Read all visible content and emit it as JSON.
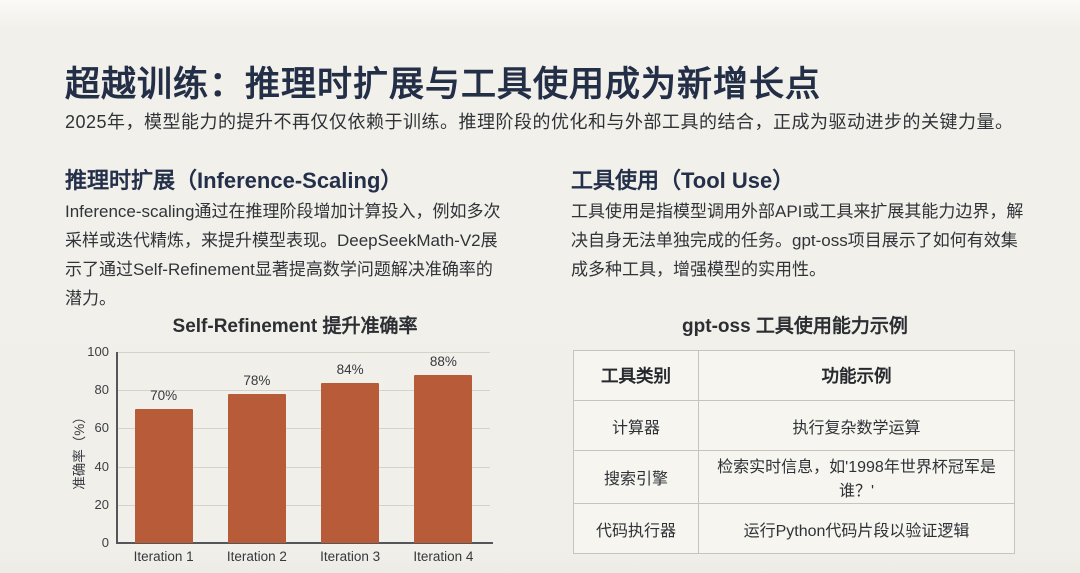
{
  "slide": {
    "title": "超越训练：推理时扩展与工具使用成为新增长点",
    "subtitle": "2025年，模型能力的提升不再仅仅依赖于训练。推理阶段的优化和与外部工具的结合，正成为驱动进步的关键力量。"
  },
  "left_section": {
    "heading": "推理时扩展（Inference-Scaling）",
    "body": "Inference-scaling通过在推理阶段增加计算投入，例如多次采样或迭代精炼，来提升模型表现。DeepSeekMath-V2展示了通过Self-Refinement显著提高数学问题解决准确率的潜力。"
  },
  "right_section": {
    "heading": "工具使用（Tool Use）",
    "body": "工具使用是指模型调用外部API或工具来扩展其能力边界，解决自身无法单独完成的任务。gpt-oss项目展示了如何有效集成多种工具，增强模型的实用性。"
  },
  "chart_data": {
    "type": "bar",
    "title": "Self-Refinement 提升准确率",
    "categories": [
      "Iteration 1",
      "Iteration 2",
      "Iteration 3",
      "Iteration 4"
    ],
    "values": [
      70,
      78,
      84,
      88
    ],
    "value_labels": [
      "70%",
      "78%",
      "84%",
      "88%"
    ],
    "xlabel": "",
    "ylabel": "准确率（%）",
    "yticks": [
      0,
      20,
      40,
      60,
      80,
      100
    ],
    "ylim": [
      0,
      100
    ],
    "grid": true,
    "legend": false,
    "bar_color": "#b75b38"
  },
  "table": {
    "title": "gpt-oss 工具使用能力示例",
    "headers": [
      "工具类别",
      "功能示例"
    ],
    "rows": [
      [
        "计算器",
        "执行复杂数学运算"
      ],
      [
        "搜索引擎",
        "检索实时信息，如'1998年世界杯冠军是谁？'"
      ],
      [
        "代码执行器",
        "运行Python代码片段以验证逻辑"
      ]
    ]
  },
  "colors": {
    "background": "#f1efe9",
    "title_text": "#232e47",
    "body_text": "#303439",
    "bar": "#b75b38",
    "gridline": "#d5d2c9",
    "axis": "#55565a",
    "table_border": "#c7c4bc",
    "table_cell_bg": "#f6f5ef"
  }
}
